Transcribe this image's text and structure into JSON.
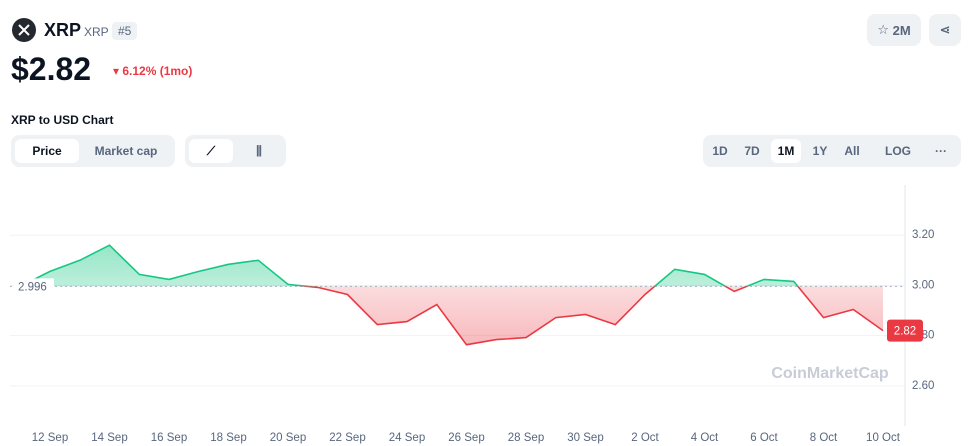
{
  "header": {
    "name": "XRP",
    "symbol": "XRP",
    "rank": "#5",
    "price": "$2.82",
    "change": "6.12% (1mo)",
    "watchlist": "2M",
    "chart_heading": "XRP to USD Chart"
  },
  "controls": {
    "tabs": [
      "Price",
      "Market cap"
    ],
    "ranges": [
      "1D",
      "7D",
      "1M",
      "1Y",
      "All",
      "LOG"
    ]
  },
  "chart_data": {
    "type": "line",
    "watermark": "CoinMarketCap",
    "categories": [
      null,
      "12 Sep",
      null,
      "14 Sep",
      null,
      "16 Sep",
      null,
      "18 Sep",
      null,
      "20 Sep",
      null,
      "22 Sep",
      null,
      "24 Sep",
      null,
      "26 Sep",
      null,
      "28 Sep",
      null,
      "30 Sep",
      null,
      "2 Oct",
      null,
      "4 Oct",
      null,
      "6 Oct",
      null,
      "8 Oct",
      null,
      "10 Oct"
    ],
    "values": [
      2.996,
      3.056,
      3.1,
      3.16,
      3.044,
      3.024,
      3.056,
      3.084,
      3.1,
      3.004,
      2.992,
      2.964,
      2.844,
      2.856,
      2.924,
      2.764,
      2.784,
      2.792,
      2.872,
      2.884,
      2.844,
      2.964,
      3.064,
      3.044,
      2.976,
      3.024,
      3.016,
      2.872,
      2.904,
      2.82
    ],
    "baseline": 2.996,
    "up_color": "#16c784",
    "down_color": "#ea3943",
    "ylim": [
      2.44,
      3.4
    ],
    "yticks": [
      {
        "value": 2.6,
        "label": "2.60"
      },
      {
        "value": 2.8,
        "label": "2.80"
      },
      {
        "value": 3.0,
        "label": "3.00"
      },
      {
        "value": 3.2,
        "label": "3.20"
      }
    ],
    "grid": true
  }
}
